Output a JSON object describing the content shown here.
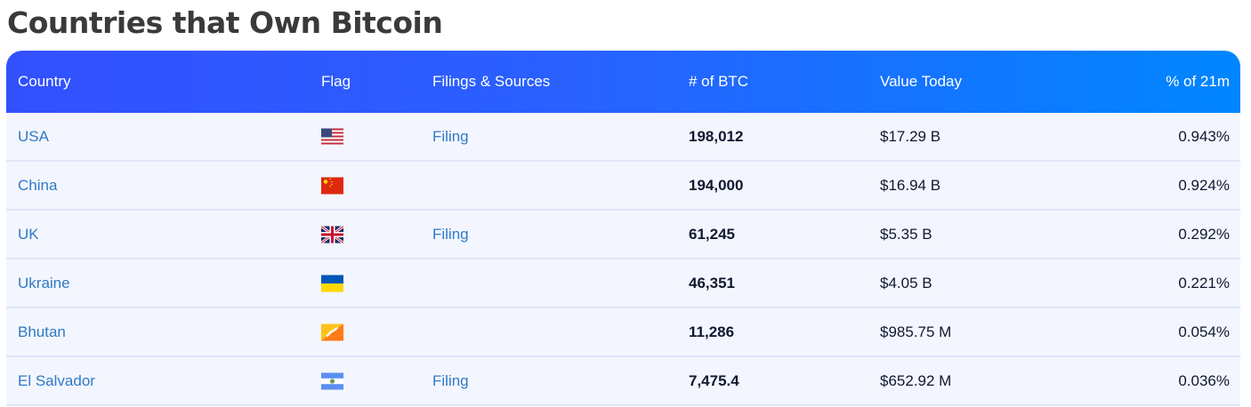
{
  "title": "Countries that Own Bitcoin",
  "header": {
    "country": "Country",
    "flag": "Flag",
    "filings": "Filings & Sources",
    "btc": "# of BTC",
    "value": "Value Today",
    "pct": "% of 21m"
  },
  "colors": {
    "header_start": "#3350ff",
    "header_end": "#0086ff",
    "link": "#2f7ac6",
    "row_bg": "#f3f6fe"
  },
  "rows": [
    {
      "country": "USA",
      "flag": "us-flag-icon",
      "filing": "Filing",
      "btc": "198,012",
      "value": "$17.29 B",
      "pct": "0.943%"
    },
    {
      "country": "China",
      "flag": "china-flag-icon",
      "filing": "",
      "btc": "194,000",
      "value": "$16.94 B",
      "pct": "0.924%"
    },
    {
      "country": "UK",
      "flag": "uk-flag-icon",
      "filing": "Filing",
      "btc": "61,245",
      "value": "$5.35 B",
      "pct": "0.292%"
    },
    {
      "country": "Ukraine",
      "flag": "ukraine-flag-icon",
      "filing": "",
      "btc": "46,351",
      "value": "$4.05 B",
      "pct": "0.221%"
    },
    {
      "country": "Bhutan",
      "flag": "bhutan-flag-icon",
      "filing": "",
      "btc": "11,286",
      "value": "$985.75 M",
      "pct": "0.054%"
    },
    {
      "country": "El Salvador",
      "flag": "el-salvador-flag-icon",
      "filing": "Filing",
      "btc": "7,475.4",
      "value": "$652.92 M",
      "pct": "0.036%"
    }
  ]
}
